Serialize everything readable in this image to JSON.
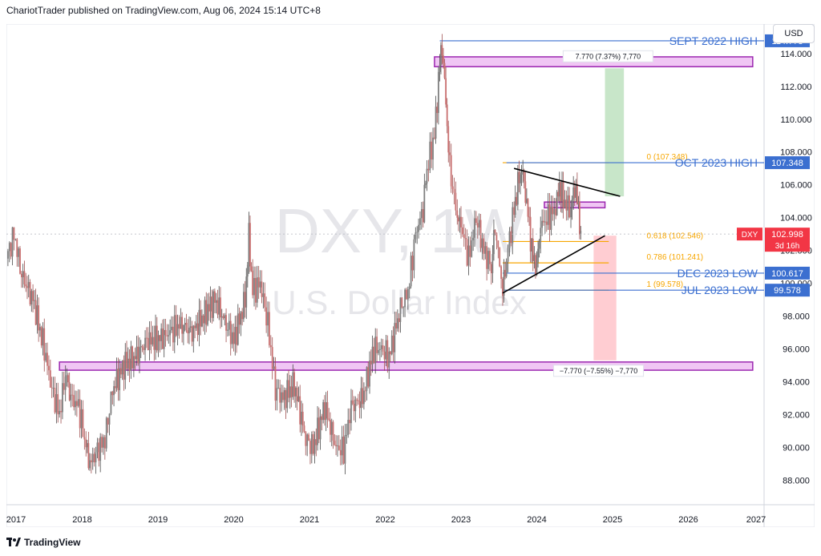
{
  "header": {
    "text": "ChariotTrader published on TradingView.com, Aug 06, 2024 15:14 UTC+8"
  },
  "currency": "USD",
  "footer": {
    "brand": "TradingView",
    "logo_icon": "tradingview-logo-icon"
  },
  "watermark": {
    "symbol": "DXY, 1W",
    "name": "U.S. Dollar Index"
  },
  "price_badge": {
    "label": "DXY",
    "price": "102.998",
    "countdown": "3d 16h",
    "color": "#f23645"
  },
  "colors": {
    "up": "#26a69a",
    "down": "#ef5350",
    "level_line": "#3b6fd0",
    "fib": "#f7a600",
    "zone_fill": "#f0c6f4",
    "zone_stroke": "#9c27b0",
    "target_up": "#c8e6c9",
    "target_down": "#ffcdd2",
    "trend": "#000000"
  },
  "chart_data": {
    "type": "candlestick",
    "title": "DXY, 1W",
    "subtitle": "U.S. Dollar Index",
    "x_ticks": [
      "2017",
      "2018",
      "2019",
      "2020",
      "2021",
      "2022",
      "2023",
      "2024",
      "2025",
      "2026",
      "2027"
    ],
    "y_ticks": [
      "88.000",
      "90.000",
      "92.000",
      "94.000",
      "96.000",
      "98.000",
      "100.000",
      "102.000",
      "104.000",
      "106.000",
      "108.000",
      "110.000",
      "112.000",
      "114.000"
    ],
    "y_range": [
      86.5,
      115.8
    ],
    "x_range": [
      2017.0,
      2027.0
    ],
    "price_path": [
      [
        2017.0,
        101.5
      ],
      [
        2017.1,
        103.0
      ],
      [
        2017.2,
        100.5
      ],
      [
        2017.35,
        99.0
      ],
      [
        2017.5,
        96.0
      ],
      [
        2017.6,
        93.5
      ],
      [
        2017.7,
        92.0
      ],
      [
        2017.78,
        94.5
      ],
      [
        2017.85,
        93.0
      ],
      [
        2017.95,
        92.5
      ],
      [
        2018.05,
        90.0
      ],
      [
        2018.1,
        89.0
      ],
      [
        2018.2,
        89.8
      ],
      [
        2018.3,
        90.5
      ],
      [
        2018.4,
        93.5
      ],
      [
        2018.55,
        95.0
      ],
      [
        2018.7,
        95.5
      ],
      [
        2018.85,
        96.5
      ],
      [
        2018.95,
        96.5
      ],
      [
        2019.1,
        96.8
      ],
      [
        2019.3,
        97.5
      ],
      [
        2019.45,
        97.0
      ],
      [
        2019.6,
        98.0
      ],
      [
        2019.75,
        99.0
      ],
      [
        2019.9,
        97.5
      ],
      [
        2020.0,
        96.5
      ],
      [
        2020.15,
        99.0
      ],
      [
        2020.2,
        102.8
      ],
      [
        2020.25,
        99.5
      ],
      [
        2020.35,
        100.0
      ],
      [
        2020.45,
        97.5
      ],
      [
        2020.55,
        93.5
      ],
      [
        2020.65,
        93.0
      ],
      [
        2020.8,
        93.8
      ],
      [
        2020.95,
        90.5
      ],
      [
        2021.05,
        90.0
      ],
      [
        2021.2,
        92.5
      ],
      [
        2021.35,
        90.0
      ],
      [
        2021.45,
        89.8
      ],
      [
        2021.55,
        92.5
      ],
      [
        2021.7,
        93.0
      ],
      [
        2021.85,
        96.0
      ],
      [
        2021.95,
        96.0
      ],
      [
        2022.05,
        95.5
      ],
      [
        2022.2,
        98.5
      ],
      [
        2022.3,
        99.5
      ],
      [
        2022.4,
        103.0
      ],
      [
        2022.5,
        104.5
      ],
      [
        2022.55,
        107.0
      ],
      [
        2022.65,
        109.0
      ],
      [
        2022.72,
        113.5
      ],
      [
        2022.75,
        114.5
      ],
      [
        2022.8,
        111.0
      ],
      [
        2022.85,
        107.0
      ],
      [
        2022.95,
        104.0
      ],
      [
        2023.0,
        103.5
      ],
      [
        2023.1,
        101.5
      ],
      [
        2023.2,
        104.0
      ],
      [
        2023.3,
        102.0
      ],
      [
        2023.4,
        101.0
      ],
      [
        2023.45,
        103.5
      ],
      [
        2023.55,
        99.5
      ],
      [
        2023.6,
        101.5
      ],
      [
        2023.7,
        104.5
      ],
      [
        2023.75,
        106.0
      ],
      [
        2023.8,
        107.0
      ],
      [
        2023.85,
        105.5
      ],
      [
        2023.9,
        103.5
      ],
      [
        2023.95,
        101.5
      ],
      [
        2024.0,
        101.0
      ],
      [
        2024.05,
        103.5
      ],
      [
        2024.15,
        104.0
      ],
      [
        2024.25,
        104.5
      ],
      [
        2024.3,
        106.0
      ],
      [
        2024.35,
        105.0
      ],
      [
        2024.45,
        104.5
      ],
      [
        2024.5,
        106.0
      ],
      [
        2024.55,
        104.5
      ],
      [
        2024.58,
        103.0
      ]
    ],
    "horizontal_levels": [
      {
        "label": "SEPT 2022 HIGH",
        "price": 114.778,
        "price_text": "114.778"
      },
      {
        "label": "OCT 2023 HIGH",
        "price": 107.348,
        "price_text": "107.348"
      },
      {
        "label": "DEC 2023 LOW",
        "price": 100.617,
        "price_text": "100.617"
      },
      {
        "label": "JUL 2023 LOW",
        "price": 99.578,
        "price_text": "99.578"
      }
    ],
    "fib_levels": [
      {
        "text": "0 (107.348)",
        "price": 107.348
      },
      {
        "text": "0.618 (102.546)",
        "price": 102.546
      },
      {
        "text": "0.786 (101.241)",
        "price": 101.241
      },
      {
        "text": "1 (99.578)",
        "price": 99.578
      }
    ],
    "zones": [
      {
        "from": 113.2,
        "to": 113.8,
        "x_start": 2022.65,
        "x_end": 2026.85
      },
      {
        "from": 104.6,
        "to": 104.95,
        "x_start": 2024.1,
        "x_end": 2024.9
      },
      {
        "from": 94.7,
        "to": 95.2,
        "x_start": 2017.7,
        "x_end": 2026.85
      }
    ],
    "projections": [
      {
        "text": "7.770 (7.37%) 7,770",
        "from": 105.3,
        "to": 113.1,
        "x_start": 2024.9,
        "x_end": 2025.15
      },
      {
        "text": "−7.770 (−7.55%) −7,770",
        "from": 95.3,
        "to": 102.9,
        "x_start": 2024.75,
        "x_end": 2025.05
      }
    ],
    "trendlines": [
      {
        "from": [
          2023.7,
          107.0
        ],
        "to": [
          2025.1,
          105.3
        ]
      },
      {
        "from": [
          2023.55,
          99.4
        ],
        "to": [
          2024.9,
          102.9
        ]
      }
    ],
    "current_price": 102.998
  }
}
